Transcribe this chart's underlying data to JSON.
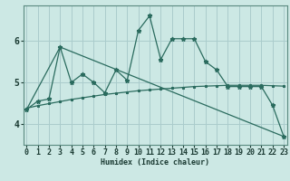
{
  "xlabel": "Humidex (Indice chaleur)",
  "bg_color": "#cce8e4",
  "grid_color": "#aacccc",
  "line_color": "#2a6b5e",
  "x_ticks": [
    0,
    1,
    2,
    3,
    4,
    5,
    6,
    7,
    8,
    9,
    10,
    11,
    12,
    13,
    14,
    15,
    16,
    17,
    18,
    19,
    20,
    21,
    22,
    23
  ],
  "y_ticks": [
    4,
    5,
    6
  ],
  "ylim": [
    3.5,
    6.85
  ],
  "xlim": [
    -0.3,
    23.3
  ],
  "line1_x": [
    0,
    1,
    2,
    3,
    4,
    5,
    6,
    7,
    8,
    9,
    10,
    11,
    12,
    13,
    14,
    15,
    16,
    17,
    18,
    19,
    20,
    21,
    22,
    23
  ],
  "line1_y": [
    4.35,
    4.55,
    4.6,
    5.85,
    5.0,
    5.2,
    5.0,
    4.75,
    5.3,
    5.05,
    6.25,
    6.6,
    5.55,
    6.05,
    6.05,
    6.05,
    5.5,
    5.3,
    4.9,
    4.9,
    4.9,
    4.9,
    4.45,
    3.7
  ],
  "line2_x": [
    0,
    3,
    23
  ],
  "line2_y": [
    4.35,
    5.85,
    3.7
  ],
  "line3_x": [
    0,
    1,
    2,
    3,
    4,
    5,
    6,
    7,
    8,
    9,
    10,
    11,
    12,
    13,
    14,
    15,
    16,
    17,
    18,
    19,
    20,
    21,
    22,
    23
  ],
  "line3_y": [
    4.38,
    4.44,
    4.49,
    4.54,
    4.59,
    4.63,
    4.67,
    4.71,
    4.74,
    4.77,
    4.8,
    4.82,
    4.84,
    4.86,
    4.88,
    4.9,
    4.91,
    4.92,
    4.93,
    4.93,
    4.93,
    4.93,
    4.92,
    4.91
  ],
  "xlabel_fontsize": 6,
  "tick_fontsize": 6
}
